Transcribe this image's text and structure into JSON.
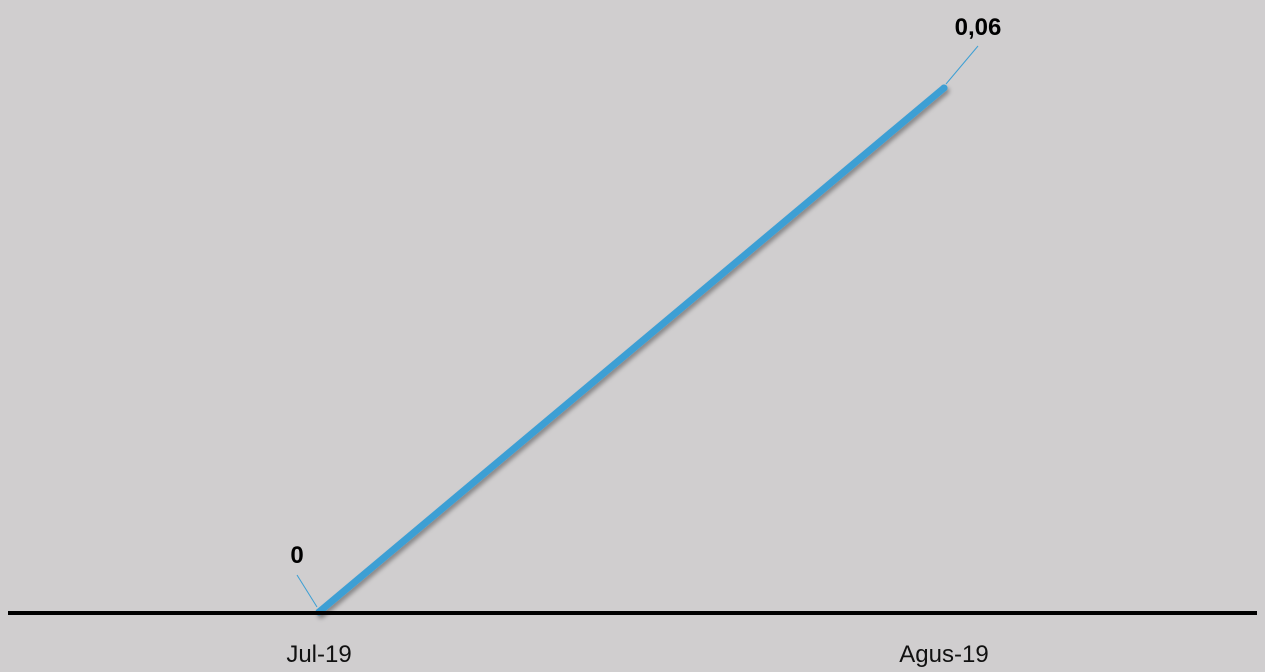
{
  "chart_data": {
    "type": "line",
    "categories": [
      "Jul-19",
      "Agus-19"
    ],
    "series": [
      {
        "values": [
          0,
          0.06
        ],
        "data_labels": [
          "0",
          "0,06"
        ],
        "color": "#3d9fd4"
      }
    ],
    "xlabel": "",
    "ylabel": "",
    "ylim": [
      0,
      0.066
    ],
    "grid": false,
    "legend": "none"
  },
  "colors": {
    "background": "#d0cecf",
    "axis": "#000000",
    "line": "#3d9fd4",
    "leader": "#3d9fd4"
  }
}
